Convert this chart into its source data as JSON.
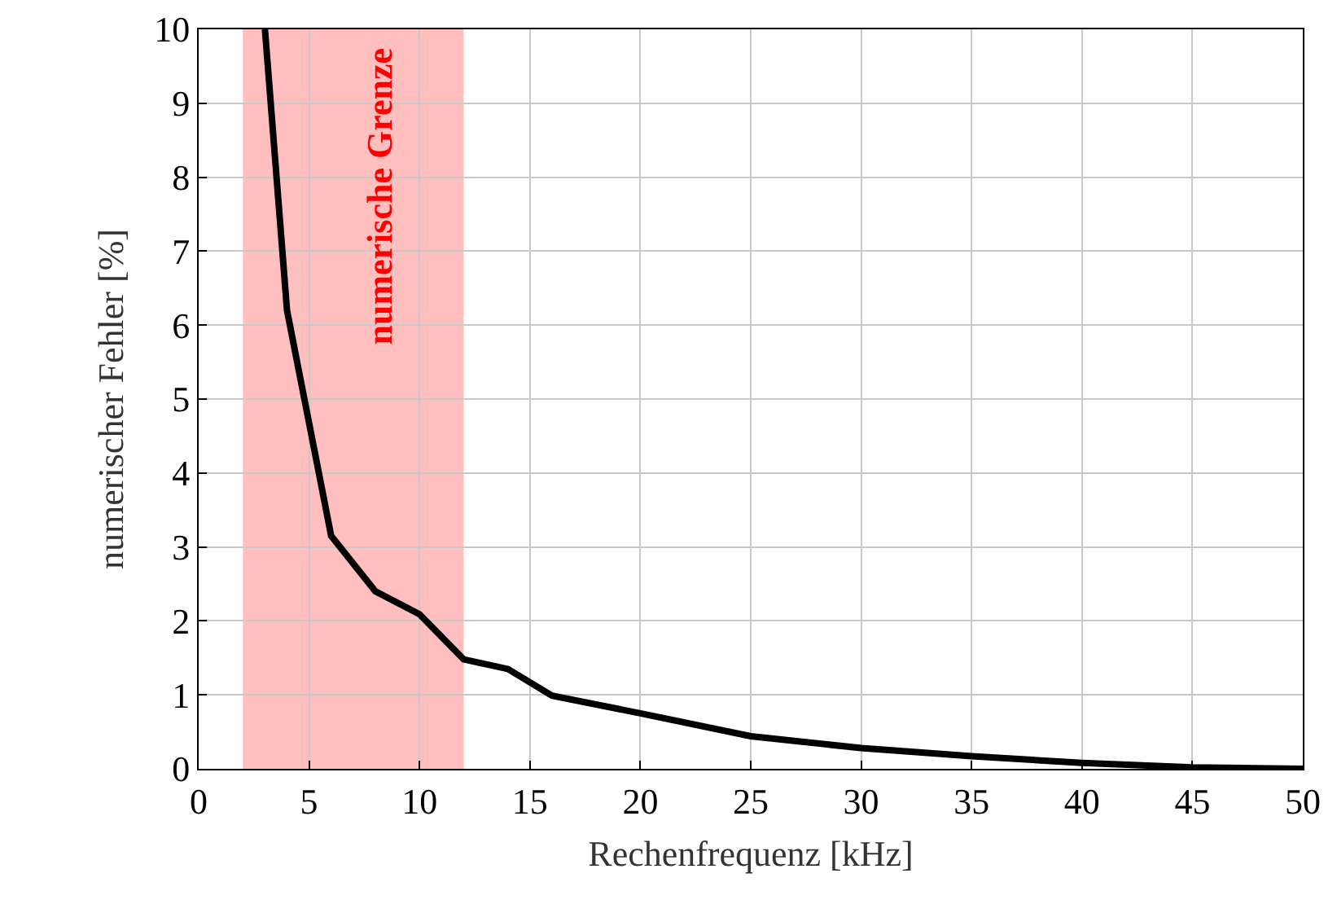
{
  "chart_data": {
    "type": "line",
    "xlabel": "Rechenfrequenz [kHz]",
    "ylabel": "numerischer Fehler [%]",
    "x": [
      3,
      4,
      6,
      8,
      10,
      12,
      14,
      16,
      20,
      25,
      30,
      35,
      40,
      45,
      50
    ],
    "series": [
      {
        "color": "#000000",
        "values": [
          10,
          6.2,
          3.15,
          2.4,
          2.09,
          1.48,
          1.35,
          0.99,
          0.75,
          0.44,
          0.28,
          0.17,
          0.08,
          0.02,
          0
        ]
      }
    ],
    "xlim": [
      0,
      50
    ],
    "xticks": [
      0,
      5,
      10,
      15,
      20,
      25,
      30,
      35,
      40,
      45,
      50
    ],
    "ylim": [
      0,
      10
    ],
    "yticks": [
      0,
      1,
      2,
      3,
      4,
      5,
      6,
      7,
      8,
      9,
      10
    ],
    "bands": [
      {
        "axis": "x",
        "from": 2,
        "to": 12,
        "label": "numerische Grenze",
        "color": "#ff0000"
      }
    ],
    "grid": true,
    "legend": false,
    "marker": "none",
    "line_style": "solid"
  }
}
